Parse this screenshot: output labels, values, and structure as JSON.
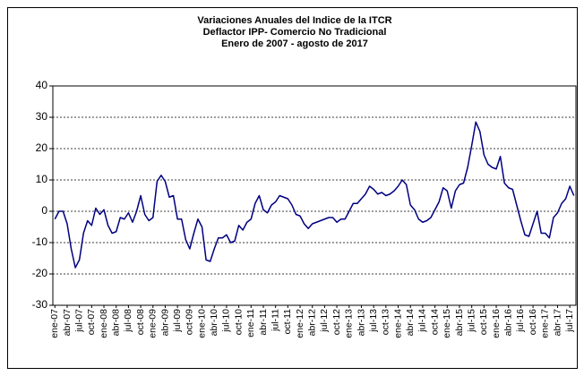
{
  "chart_data": {
    "type": "line",
    "title": [
      "Variaciones Anuales del Indice de la ITCR",
      "Deflactor IPP- Comercio No Tradicional",
      "Enero de 2007 -  agosto de 2017"
    ],
    "categories": [
      "ene-07",
      null,
      null,
      "abr-07",
      null,
      null,
      "jul-07",
      null,
      null,
      "oct-07",
      null,
      null,
      "ene-08",
      null,
      null,
      "abr-08",
      null,
      null,
      "jul-08",
      null,
      null,
      "oct-08",
      null,
      null,
      "ene-09",
      null,
      null,
      "abr-09",
      null,
      null,
      "jul-09",
      null,
      null,
      "oct-09",
      null,
      null,
      "ene-10",
      null,
      null,
      "abr-10",
      null,
      null,
      "jul-10",
      null,
      null,
      "oct-10",
      null,
      null,
      "ene-11",
      null,
      null,
      "abr-11",
      null,
      null,
      "jul-11",
      null,
      null,
      "oct-11",
      null,
      null,
      "ene-12",
      null,
      null,
      "abr-12",
      null,
      null,
      "jul-12",
      null,
      null,
      "oct-12",
      null,
      null,
      "ene-13",
      null,
      null,
      "abr-13",
      null,
      null,
      "jul-13",
      null,
      null,
      "oct-13",
      null,
      null,
      "ene-14",
      null,
      null,
      "abr-14",
      null,
      null,
      "jul-14",
      null,
      null,
      "oct-14",
      null,
      null,
      "ene-15",
      null,
      null,
      "abr-15",
      null,
      null,
      "jul-15",
      null,
      null,
      "oct-15",
      null,
      null,
      "ene-16",
      null,
      null,
      "abr-16",
      null,
      null,
      "jul-16",
      null,
      null,
      "oct-16",
      null,
      null,
      "ene-17",
      null,
      null,
      "abr-17",
      null,
      null,
      "jul-17",
      null
    ],
    "values": [
      -2.5,
      0,
      0,
      -4,
      -12,
      -18,
      -15.5,
      -7,
      -3,
      -4.5,
      1,
      -1,
      0.5,
      -4.5,
      -7,
      -6.5,
      -2,
      -2.5,
      -0.5,
      -3.5,
      0,
      5,
      -1,
      -3,
      -2,
      9.5,
      11.5,
      9.5,
      4.5,
      5,
      -2.5,
      -2.5,
      -9,
      -12,
      -7,
      -2.5,
      -5,
      -15.5,
      -16,
      -12,
      -8.5,
      -8.5,
      -7.5,
      -10,
      -9.5,
      -4.5,
      -6,
      -3.5,
      -2.5,
      2.5,
      5,
      0.5,
      -0.5,
      2,
      3,
      5,
      4.5,
      4,
      2,
      -1,
      -1.5,
      -4,
      -5.5,
      -4,
      -3.5,
      -3,
      -2.5,
      -2,
      -2,
      -3.5,
      -2.5,
      -2.5,
      0,
      2.5,
      2.5,
      4,
      5.5,
      8,
      7,
      5.5,
      6,
      5,
      5.5,
      6.5,
      8,
      10,
      8.5,
      2,
      0.5,
      -2.5,
      -3.5,
      -3,
      -2,
      0.5,
      3,
      7.5,
      6.5,
      1,
      6.5,
      8.5,
      9,
      14,
      21,
      28.5,
      25.5,
      18,
      15,
      14,
      13.5,
      17.5,
      9,
      7.5,
      7,
      2,
      -3,
      -7.5,
      -8,
      -4,
      0,
      -7,
      -7,
      -8.5,
      -2,
      -0.5,
      2.5,
      4,
      8,
      5
    ],
    "color": "#000080",
    "ylim": [
      -30,
      40
    ],
    "yticks": [
      -30,
      -20,
      -10,
      0,
      10,
      20,
      30,
      40
    ],
    "grid": true
  }
}
